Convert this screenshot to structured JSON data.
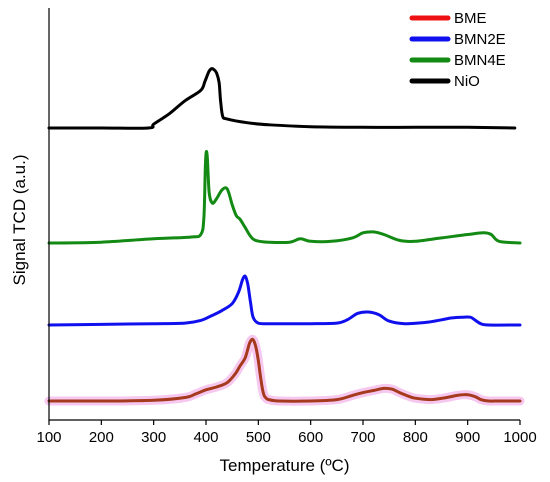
{
  "chart_data": {
    "type": "line",
    "xlabel": "Temperature (ºC)",
    "ylabel": "Signal TCD (a.u.)",
    "xlim": [
      100,
      1000
    ],
    "x_ticks": [
      100,
      200,
      300,
      400,
      500,
      600,
      700,
      800,
      900,
      1000
    ],
    "y_tick_labels": false,
    "legend_position": "top-right",
    "series": [
      {
        "name": "BME",
        "color": "#ee1111",
        "x": [
          100,
          200,
          300,
          360,
          380,
          400,
          420,
          440,
          455,
          465,
          475,
          483,
          488,
          492,
          496,
          500,
          505,
          510,
          515,
          520,
          540,
          600,
          650,
          680,
          700,
          720,
          740,
          755,
          770,
          790,
          800,
          830,
          860,
          880,
          900,
          915,
          925,
          940,
          960,
          1000
        ],
        "y": [
          0.0,
          0.0,
          0.01,
          0.05,
          0.1,
          0.16,
          0.2,
          0.26,
          0.38,
          0.5,
          0.62,
          0.82,
          0.88,
          0.85,
          0.75,
          0.58,
          0.3,
          0.1,
          0.04,
          0.02,
          0.0,
          0.0,
          0.02,
          0.08,
          0.12,
          0.15,
          0.18,
          0.17,
          0.12,
          0.06,
          0.04,
          0.02,
          0.05,
          0.08,
          0.09,
          0.06,
          0.02,
          0.0,
          0.0,
          0.0
        ]
      },
      {
        "name": "BMN2E",
        "color": "#1010ee",
        "x": [
          100,
          200,
          300,
          360,
          390,
          410,
          430,
          450,
          462,
          470,
          475,
          480,
          485,
          490,
          500,
          520,
          560,
          600,
          650,
          670,
          690,
          710,
          730,
          750,
          780,
          820,
          850,
          870,
          890,
          905,
          915,
          925,
          940,
          1000
        ],
        "y": [
          0.0,
          0.01,
          0.02,
          0.03,
          0.07,
          0.14,
          0.22,
          0.33,
          0.5,
          0.7,
          0.75,
          0.62,
          0.35,
          0.12,
          0.03,
          0.02,
          0.02,
          0.02,
          0.03,
          0.08,
          0.18,
          0.2,
          0.16,
          0.06,
          0.02,
          0.04,
          0.08,
          0.11,
          0.12,
          0.12,
          0.07,
          0.02,
          0.0,
          0.0
        ]
      },
      {
        "name": "BMN4E",
        "color": "#138a13",
        "x": [
          100,
          200,
          300,
          370,
          390,
          396,
          399,
          402,
          406,
          412,
          420,
          430,
          438,
          443,
          450,
          458,
          465,
          475,
          485,
          495,
          520,
          560,
          580,
          600,
          640,
          680,
          700,
          720,
          740,
          770,
          800,
          850,
          900,
          930,
          945,
          960,
          1000
        ],
        "y": [
          0.0,
          0.01,
          0.05,
          0.07,
          0.1,
          0.3,
          0.95,
          1.05,
          0.6,
          0.47,
          0.52,
          0.62,
          0.65,
          0.6,
          0.45,
          0.32,
          0.28,
          0.18,
          0.08,
          0.03,
          0.01,
          0.01,
          0.05,
          0.02,
          0.02,
          0.06,
          0.12,
          0.13,
          0.1,
          0.03,
          0.02,
          0.06,
          0.1,
          0.12,
          0.1,
          0.02,
          0.0
        ]
      },
      {
        "name": "NiO",
        "color": "#000000",
        "x": [
          100,
          200,
          290,
          300,
          330,
          360,
          390,
          398,
          405,
          410,
          415,
          420,
          425,
          428,
          432,
          440,
          480,
          520,
          600,
          700,
          800,
          900,
          990
        ],
        "y": [
          0.0,
          0.0,
          0.0,
          0.06,
          0.22,
          0.42,
          0.58,
          0.72,
          0.86,
          0.91,
          0.9,
          0.85,
          0.7,
          0.4,
          0.18,
          0.14,
          0.08,
          0.05,
          0.02,
          0.01,
          0.01,
          0.01,
          0.0
        ]
      }
    ]
  }
}
